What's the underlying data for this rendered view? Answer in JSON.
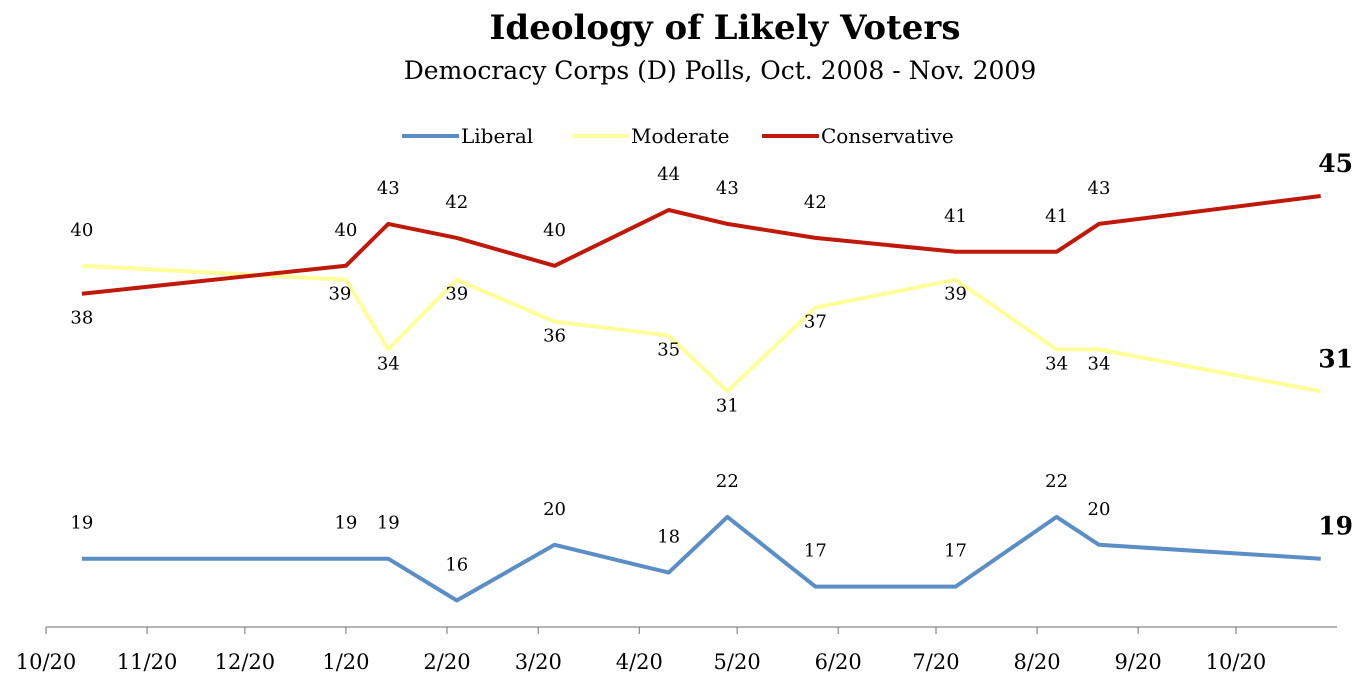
{
  "chart_data": {
    "type": "line",
    "title": "Ideology of Likely Voters",
    "subtitle": "Democracy Corps (D) Polls, Oct. 2008 - Nov. 2009",
    "xlabel": "",
    "ylabel": "",
    "x_tick_labels": [
      "10/20",
      "11/20",
      "12/20",
      "1/20",
      "2/20",
      "3/20",
      "4/20",
      "5/20",
      "6/20",
      "7/20",
      "8/20",
      "9/20",
      "10/20"
    ],
    "x": [
      "2008-10-31",
      "2009-01-20",
      "2009-02-02",
      "2009-02-23",
      "2009-03-25",
      "2009-04-29",
      "2009-05-17",
      "2009-06-13",
      "2009-07-26",
      "2009-08-26",
      "2009-09-08",
      "2009-11-15"
    ],
    "series": [
      {
        "name": "Liberal",
        "color": "#5b8ec6",
        "values": [
          19,
          19,
          19,
          16,
          20,
          18,
          22,
          17,
          17,
          22,
          20,
          19
        ]
      },
      {
        "name": "Moderate",
        "color": "#ffff99",
        "values": [
          40,
          39,
          34,
          39,
          36,
          35,
          31,
          37,
          39,
          34,
          34,
          31
        ]
      },
      {
        "name": "Conservative",
        "color": "#c0190b",
        "values": [
          38,
          40,
          43,
          42,
          40,
          44,
          43,
          42,
          41,
          41,
          43,
          45
        ]
      }
    ],
    "legend": "top-center",
    "grid": false,
    "end_labels": true
  }
}
